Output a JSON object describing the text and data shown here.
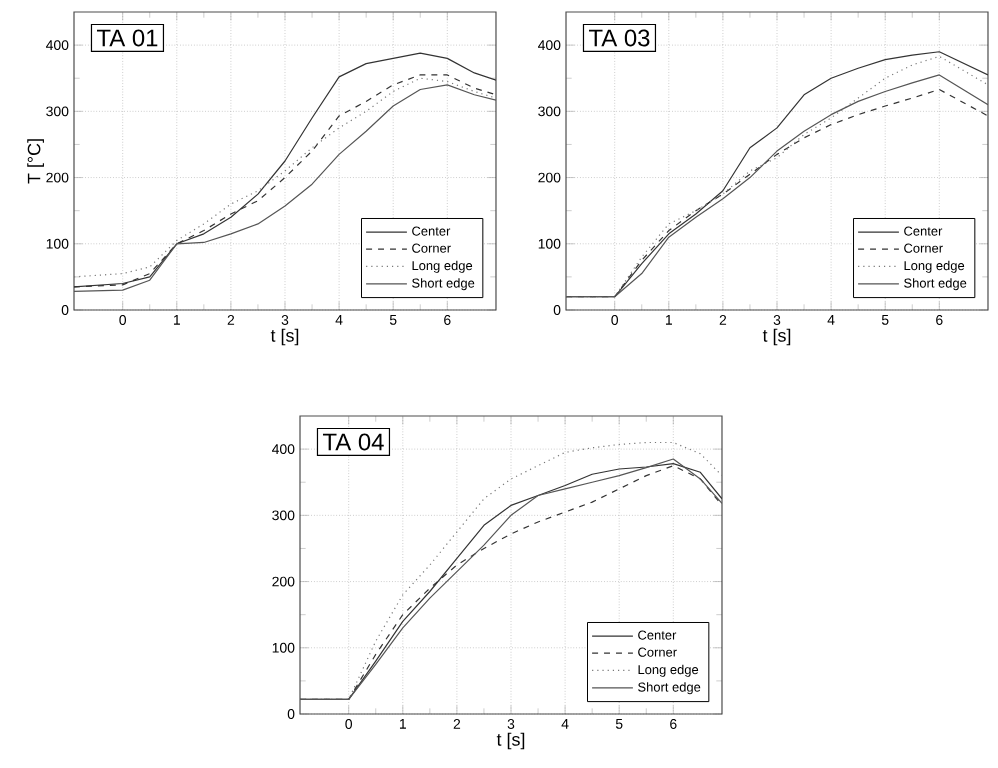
{
  "chart_data": [
    {
      "type": "line",
      "title": "TA 01",
      "xlabel": "t [s]",
      "ylabel": "T [°C]",
      "xlim": [
        -0.9,
        6.9
      ],
      "ylim": [
        0,
        450
      ],
      "xticks": [
        0,
        1,
        2,
        3,
        4,
        5,
        6
      ],
      "yticks": [
        0,
        100,
        200,
        300,
        400
      ],
      "grid": true,
      "legend": "bottom right",
      "x": [
        -0.9,
        0,
        0.5,
        1,
        1.5,
        2,
        2.5,
        3,
        3.5,
        4,
        4.5,
        5,
        5.5,
        6,
        6.5,
        6.9
      ],
      "series": [
        {
          "name": "Center",
          "color": "#333333",
          "line_style": "solid",
          "values": [
            35,
            40,
            50,
            100,
            115,
            140,
            175,
            225,
            290,
            352,
            372,
            380,
            388,
            380,
            358,
            347
          ]
        },
        {
          "name": "Corner",
          "color": "#333333",
          "line_style": "dashed",
          "values": [
            35,
            38,
            55,
            100,
            120,
            145,
            165,
            200,
            240,
            293,
            315,
            340,
            355,
            355,
            335,
            325
          ]
        },
        {
          "name": "Long edge",
          "color": "#777777",
          "line_style": "dotted",
          "values": [
            50,
            55,
            65,
            105,
            130,
            160,
            180,
            210,
            245,
            275,
            300,
            330,
            350,
            345,
            330,
            320
          ]
        },
        {
          "name": "Short edge",
          "color": "#555555",
          "line_style": "solid",
          "values": [
            28,
            30,
            45,
            100,
            102,
            115,
            130,
            157,
            190,
            235,
            270,
            308,
            333,
            340,
            325,
            317
          ]
        }
      ]
    },
    {
      "type": "line",
      "title": "TA 03",
      "xlabel": "t [s]",
      "xlim": [
        -0.9,
        6.9
      ],
      "ylim": [
        0,
        450
      ],
      "xticks": [
        0,
        1,
        2,
        3,
        4,
        5,
        6
      ],
      "yticks": [
        0,
        100,
        200,
        300,
        400
      ],
      "grid": true,
      "legend": "bottom right",
      "x": [
        -0.9,
        0,
        0.5,
        1,
        1.5,
        2,
        2.5,
        3,
        3.5,
        4,
        4.5,
        5,
        5.5,
        6,
        6.9
      ],
      "series": [
        {
          "name": "Center",
          "color": "#333333",
          "line_style": "solid",
          "values": [
            20,
            20,
            70,
            115,
            145,
            180,
            245,
            275,
            325,
            350,
            365,
            378,
            385,
            390,
            355
          ]
        },
        {
          "name": "Corner",
          "color": "#333333",
          "line_style": "dashed",
          "values": [
            20,
            20,
            75,
            120,
            150,
            175,
            205,
            235,
            260,
            280,
            295,
            308,
            320,
            333,
            293
          ]
        },
        {
          "name": "Long edge",
          "color": "#777777",
          "line_style": "dotted",
          "values": [
            20,
            20,
            80,
            130,
            150,
            175,
            210,
            230,
            265,
            290,
            320,
            350,
            370,
            383,
            340
          ]
        },
        {
          "name": "Short edge",
          "color": "#555555",
          "line_style": "solid",
          "values": [
            20,
            20,
            55,
            110,
            140,
            168,
            200,
            240,
            270,
            295,
            315,
            330,
            343,
            355,
            310
          ]
        }
      ]
    },
    {
      "type": "line",
      "title": "TA 04",
      "xlabel": "t [s]",
      "xlim": [
        -0.9,
        6.9
      ],
      "ylim": [
        0,
        450
      ],
      "xticks": [
        0,
        1,
        2,
        3,
        4,
        5,
        6
      ],
      "yticks": [
        0,
        100,
        200,
        300,
        400
      ],
      "grid": true,
      "legend": "bottom right",
      "x": [
        -0.9,
        0,
        0.5,
        1,
        1.5,
        2,
        2.5,
        3,
        3.5,
        4,
        4.5,
        5,
        5.5,
        6,
        6.5,
        6.9
      ],
      "series": [
        {
          "name": "Center",
          "color": "#333333",
          "line_style": "solid",
          "values": [
            22,
            22,
            80,
            140,
            185,
            235,
            285,
            315,
            330,
            345,
            362,
            370,
            373,
            378,
            365,
            325
          ]
        },
        {
          "name": "Corner",
          "color": "#333333",
          "line_style": "dashed",
          "values": [
            22,
            22,
            90,
            150,
            190,
            225,
            250,
            272,
            290,
            305,
            320,
            340,
            360,
            375,
            355,
            315
          ]
        },
        {
          "name": "Long edge",
          "color": "#777777",
          "line_style": "dotted",
          "values": [
            22,
            22,
            110,
            180,
            225,
            275,
            325,
            355,
            375,
            395,
            402,
            407,
            410,
            410,
            393,
            360
          ]
        },
        {
          "name": "Short edge",
          "color": "#555555",
          "line_style": "solid",
          "values": [
            22,
            22,
            75,
            130,
            175,
            215,
            255,
            300,
            330,
            340,
            350,
            360,
            372,
            385,
            355,
            318
          ]
        }
      ]
    }
  ]
}
